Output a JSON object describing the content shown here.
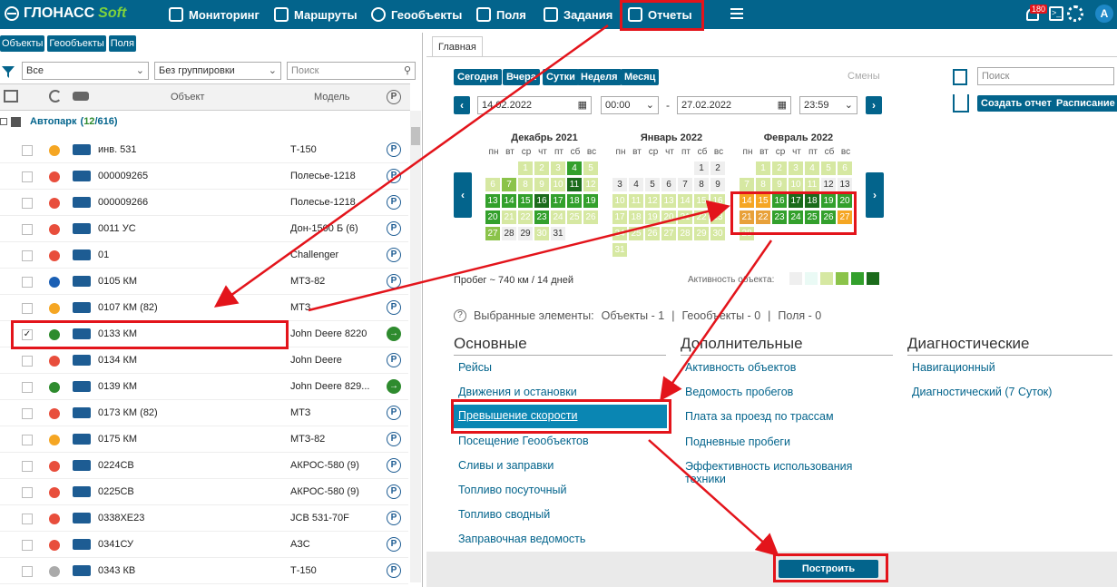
{
  "header": {
    "logo_a": "ГЛОНАСС",
    "logo_b": "Soft",
    "nav": [
      "Мониторинг",
      "Маршруты",
      "Геообъекты",
      "Поля",
      "Задания",
      "Отчеты"
    ],
    "badge": "180",
    "avatar": "A"
  },
  "left": {
    "tabs": [
      "Объекты",
      "Геообъекты",
      "Поля"
    ],
    "filter_all": "Все",
    "grouping": "Без группировки",
    "search_placeholder": "Поиск",
    "cols": {
      "object": "Объект",
      "model": "Модель"
    },
    "group": {
      "name": "Автопарк",
      "count_a": "12",
      "count_b": "616"
    },
    "rows": [
      {
        "name": "инв. 531",
        "model": "Т-150",
        "color": "#f5a623",
        "p": "P"
      },
      {
        "name": "000009265",
        "model": "Полесье-1218",
        "color": "#e84e3c",
        "p": "P"
      },
      {
        "name": "000009266",
        "model": "Полесье-1218",
        "color": "#e84e3c",
        "p": "P"
      },
      {
        "name": "0011 УС",
        "model": "Дон-1500 Б (6)",
        "color": "#e84e3c",
        "p": "P"
      },
      {
        "name": "01",
        "model": "Challenger",
        "color": "#e84e3c",
        "p": "P"
      },
      {
        "name": "0105 КМ",
        "model": "МТЗ-82",
        "color": "#1a5fb4",
        "p": "P"
      },
      {
        "name": "0107 КМ (82)",
        "model": "МТЗ",
        "color": "#f5a623",
        "p": "P"
      },
      {
        "name": "0133 КМ",
        "model": "John Deere 8220",
        "color": "#2e8b2e",
        "p": "→",
        "checked": true
      },
      {
        "name": "0134 КМ",
        "model": "John Deere",
        "color": "#e84e3c",
        "p": "P"
      },
      {
        "name": "0139 КМ",
        "model": "John Deere 829...",
        "color": "#2e8b2e",
        "p": "→"
      },
      {
        "name": "0173 КМ (82)",
        "model": "МТЗ",
        "color": "#e84e3c",
        "p": "P"
      },
      {
        "name": "0175 КМ",
        "model": "МТЗ-82",
        "color": "#f5a623",
        "p": "P"
      },
      {
        "name": "0224CB",
        "model": "АКРОС-580 (9)",
        "color": "#e84e3c",
        "p": "P"
      },
      {
        "name": "0225CB",
        "model": "АКРОС-580 (9)",
        "color": "#e84e3c",
        "p": "P"
      },
      {
        "name": "0338ХЕ23",
        "model": "JCB 531-70F",
        "color": "#e84e3c",
        "p": "P"
      },
      {
        "name": "0341СУ",
        "model": "АЗС",
        "color": "#e84e3c",
        "p": "P"
      },
      {
        "name": "0343 КВ",
        "model": "Т-150",
        "color": "#aaaaaa",
        "p": "P"
      }
    ]
  },
  "right": {
    "tab": "Главная",
    "periods": [
      "Сегодня",
      "Вчера",
      "Сутки",
      "Неделя",
      "Месяц"
    ],
    "shifts": "Смены",
    "date_from": "14.02.2022",
    "time_from": "00:00",
    "dash": "-",
    "date_to": "27.02.2022",
    "time_to": "23:59",
    "search_placeholder": "Поиск",
    "create": "Создать отчет",
    "schedule": "Расписание",
    "months": [
      {
        "title": "Декабрь 2021"
      },
      {
        "title": "Январь 2022"
      },
      {
        "title": "Февраль 2022"
      }
    ],
    "weekdays": [
      "пн",
      "вт",
      "ср",
      "чт",
      "пт",
      "сб",
      "вс"
    ],
    "mileage": "Пробег ~ 740 км / 14 дней",
    "activity": "Активность объекта:",
    "selected": {
      "label": "Выбранные элементы:",
      "objects": "Объекты - 1",
      "geo": "Геообъекты - 0",
      "fields": "Поля - 0",
      "sep": "|"
    },
    "sections": {
      "main": "Основные",
      "extra": "Дополнительные",
      "diag": "Диагностические"
    },
    "main_links": [
      "Рейсы",
      "Движения и остановки",
      "Превышение скорости",
      "Посещение Геообъектов",
      "Сливы и заправки",
      "Топливо посуточный",
      "Топливо сводный",
      "Заправочная ведомость"
    ],
    "extra_links": [
      "Активность объектов",
      "Ведомость пробегов",
      "Плата за проезд по трассам",
      "Подневные пробеги",
      "Эффективность использования техники"
    ],
    "diag_links": [
      "Навигационный",
      "Диагностический (7 Суток)"
    ],
    "build": "Построить"
  }
}
